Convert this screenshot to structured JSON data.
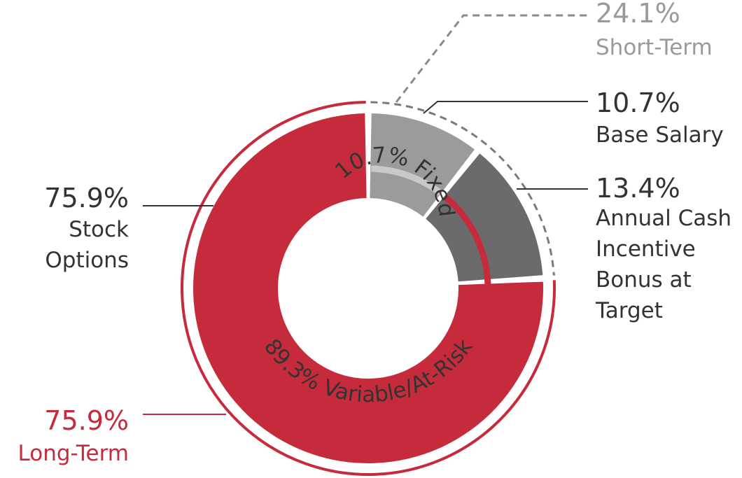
{
  "chart_data": {
    "type": "pie",
    "variant": "nested-donut",
    "outer_ring": {
      "segments": [
        {
          "name": "Base Salary",
          "value": 10.7,
          "color": "#9b9b9b"
        },
        {
          "name": "Annual Cash Incentive Bonus at Target",
          "value": 13.4,
          "color": "#6b6b6d"
        },
        {
          "name": "Stock Options",
          "value": 75.9,
          "color": "#c62b3c"
        }
      ]
    },
    "inner_ring": {
      "segments": [
        {
          "name": "Fixed",
          "value": 10.7,
          "color": "#c9c9c9",
          "label": "10.7% Fixed"
        },
        {
          "name": "Variable/At-Risk",
          "value": 89.3,
          "color": "#c62b3c",
          "label": "89.3% Variable/At-Risk"
        }
      ]
    },
    "groups": [
      {
        "name": "Short-Term",
        "value": 24.1,
        "style": "dashed",
        "color": "#7a7a7a"
      },
      {
        "name": "Long-Term",
        "value": 75.9,
        "style": "solid",
        "color": "#c62b3c"
      }
    ],
    "callouts": {
      "short_term": {
        "pct": "24.1%",
        "label": "Short-Term",
        "color": "#9a9a9a"
      },
      "base_salary": {
        "pct": "10.7%",
        "label": "Base Salary",
        "color": "#333333"
      },
      "bonus": {
        "pct": "13.4%",
        "label_lines": [
          "Annual Cash",
          "Incentive",
          "Bonus at",
          "Target"
        ],
        "color": "#333333"
      },
      "stock_options": {
        "pct": "75.9%",
        "label_lines": [
          "Stock",
          "Options"
        ],
        "color": "#333333"
      },
      "long_term": {
        "pct": "75.9%",
        "label": "Long-Term",
        "color": "#c62b3c"
      }
    }
  }
}
